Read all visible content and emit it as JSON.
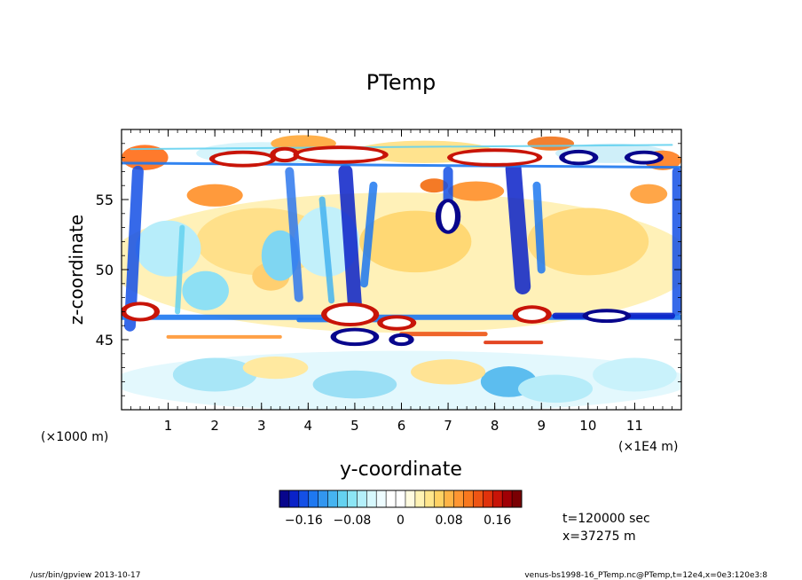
{
  "chart_data": {
    "type": "heatmap",
    "title": "PTemp",
    "xlabel": "y-coordinate",
    "ylabel": "z-coordinate",
    "x_unit_left": "(×1000 m)",
    "x_unit_right": "(×1E4 m)",
    "xlim": [
      0,
      12
    ],
    "ylim": [
      40,
      60
    ],
    "x_ticks": [
      1,
      2,
      3,
      4,
      5,
      6,
      7,
      8,
      9,
      10,
      11
    ],
    "x_tick_labels": [
      "1",
      "2",
      "3",
      "4",
      "5",
      "6",
      "7",
      "8",
      "9",
      "10",
      "11"
    ],
    "y_ticks": [
      45,
      50,
      55
    ],
    "y_tick_labels": [
      "45",
      "50",
      "55"
    ],
    "colorbar": {
      "range": [
        -0.2,
        0.2
      ],
      "tick_values": [
        -0.16,
        -0.08,
        0,
        0.08,
        0.16
      ],
      "tick_labels": [
        "−0.16",
        "−0.08",
        "0",
        "0.08",
        "0.16"
      ],
      "colors": [
        "#08068c",
        "#0a22c8",
        "#1450e6",
        "#1e78f0",
        "#3296f0",
        "#46b4f0",
        "#64d2f0",
        "#8ce6f5",
        "#b4f0fa",
        "#d7f8fd",
        "#eefcff",
        "#ffffff",
        "#ffffff",
        "#fffbe0",
        "#fff3b4",
        "#ffe68c",
        "#ffd264",
        "#ffb446",
        "#ff9632",
        "#f8781e",
        "#ee5514",
        "#e0320c",
        "#c81408",
        "#a00005",
        "#7a0003"
      ]
    }
  },
  "annotations": {
    "time": "t=120000 sec",
    "xpos": "x=37275 m"
  },
  "footer": {
    "left": "/usr/bin/gpview   2013-10-17",
    "right": "venus-bs1998-16_PTemp.nc@PTemp,t=12e4,x=0e3:120e3:8"
  }
}
